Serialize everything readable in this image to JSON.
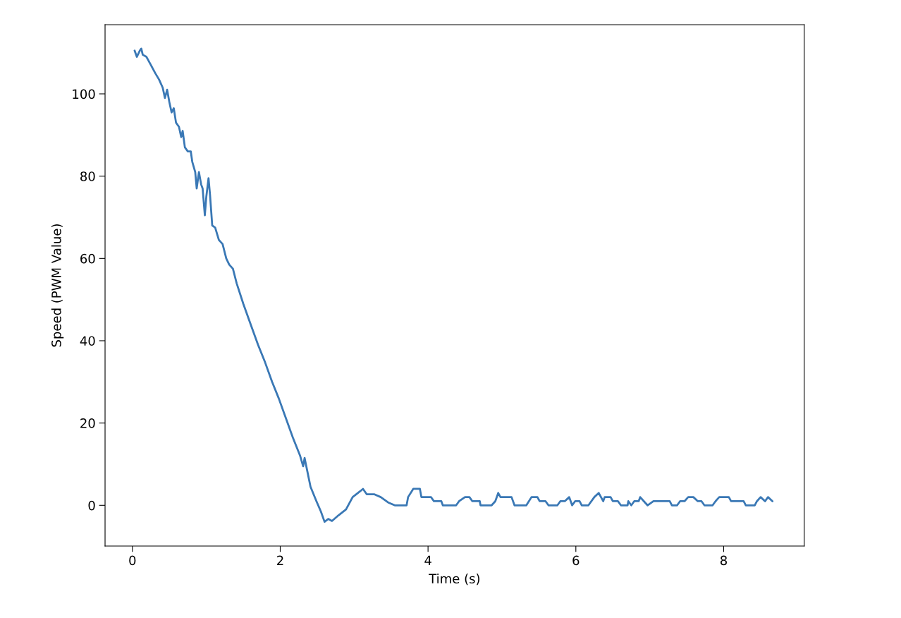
{
  "chart_data": {
    "type": "line",
    "xlabel": "Time (s)",
    "ylabel": "Speed (PWM Value)",
    "xlim": [
      -0.37,
      9.09
    ],
    "ylim": [
      -9.9,
      116.8
    ],
    "xticks": [
      0,
      2,
      4,
      6,
      8
    ],
    "yticks": [
      0,
      20,
      40,
      60,
      80,
      100
    ],
    "grid": false,
    "marker": "none",
    "line_style": "solid",
    "series": [
      {
        "color": "#3a78b5",
        "x": [
          0.03,
          0.06,
          0.1,
          0.12,
          0.14,
          0.19,
          0.25,
          0.31,
          0.36,
          0.41,
          0.44,
          0.47,
          0.5,
          0.53,
          0.56,
          0.59,
          0.63,
          0.66,
          0.68,
          0.71,
          0.75,
          0.79,
          0.81,
          0.85,
          0.87,
          0.9,
          0.93,
          0.95,
          0.98,
          1.0,
          1.03,
          1.05,
          1.08,
          1.12,
          1.17,
          1.22,
          1.27,
          1.31,
          1.36,
          1.41,
          1.5,
          1.6,
          1.7,
          1.79,
          1.89,
          1.98,
          2.08,
          2.17,
          2.27,
          2.31,
          2.33,
          2.37,
          2.41,
          2.49,
          2.55,
          2.6,
          2.65,
          2.7,
          2.79,
          2.89,
          2.98,
          3.08,
          3.12,
          3.17,
          3.27,
          3.36,
          3.46,
          3.55,
          3.71,
          3.73,
          3.8,
          3.89,
          3.91,
          4.04,
          4.08,
          4.18,
          4.2,
          4.38,
          4.42,
          4.5,
          4.56,
          4.6,
          4.7,
          4.71,
          4.86,
          4.91,
          4.95,
          4.98,
          5.13,
          5.17,
          5.33,
          5.4,
          5.48,
          5.51,
          5.59,
          5.63,
          5.75,
          5.79,
          5.85,
          5.91,
          5.95,
          5.99,
          6.05,
          6.08,
          6.17,
          6.25,
          6.31,
          6.37,
          6.39,
          6.47,
          6.5,
          6.57,
          6.61,
          6.7,
          6.71,
          6.75,
          6.79,
          6.85,
          6.87,
          6.92,
          6.97,
          7.05,
          7.27,
          7.3,
          7.37,
          7.41,
          7.47,
          7.52,
          7.59,
          7.65,
          7.7,
          7.74,
          7.85,
          7.89,
          7.94,
          8.07,
          8.1,
          8.27,
          8.3,
          8.42,
          8.45,
          8.5,
          8.56,
          8.6,
          8.66
        ],
        "values": [
          110.5,
          109,
          110.5,
          111,
          109.5,
          109,
          107,
          105,
          103.5,
          101.5,
          99,
          101,
          98,
          95.5,
          96.5,
          93,
          92,
          89.5,
          91,
          87,
          86,
          86,
          83.5,
          81,
          77,
          81,
          78,
          77,
          70.5,
          75,
          79.5,
          75.5,
          68,
          67.5,
          64.5,
          63.5,
          60,
          58.5,
          57.5,
          54,
          49,
          44,
          39,
          35,
          30,
          26,
          21,
          16.5,
          12,
          9.5,
          11.5,
          8,
          4.5,
          1,
          -1.5,
          -4,
          -3.3,
          -3.8,
          -2.4,
          -1,
          2,
          3.4,
          4,
          2.7,
          2.7,
          2,
          0.7,
          0,
          0,
          2,
          4,
          4,
          2,
          2,
          1,
          1,
          0,
          0,
          1,
          2,
          2,
          1,
          1,
          0,
          0,
          1,
          3,
          2,
          2,
          0,
          0,
          2,
          2,
          1,
          1,
          0,
          0,
          1,
          1,
          2,
          0,
          1,
          1,
          0,
          0,
          2,
          3,
          1,
          2,
          2,
          1,
          1,
          0,
          0,
          1,
          0,
          1,
          1,
          2,
          1,
          0,
          1,
          1,
          0,
          0,
          1,
          1,
          2,
          2,
          1,
          1,
          0,
          0,
          1,
          2,
          2,
          1,
          1,
          0,
          0,
          1,
          2,
          1,
          2,
          1
        ]
      }
    ]
  }
}
